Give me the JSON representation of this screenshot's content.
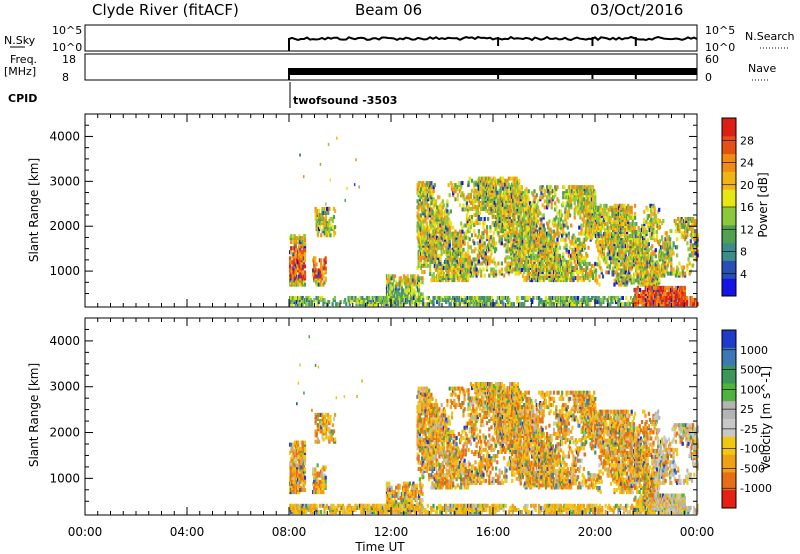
{
  "header": {
    "station": "Clyde River (fitACF)",
    "beam": "Beam 06",
    "date": "03/Oct/2016"
  },
  "top_panels": {
    "nsky_label": "N.Sky",
    "nsky_ticks": [
      "10^5",
      "10^0"
    ],
    "nsearch_label": "N.Search",
    "nsearch_ticks": [
      "10^5",
      "10^0"
    ],
    "freq_label": "Freq.",
    "freq_unit": "[MHz]",
    "freq_ticks": [
      "18",
      "8"
    ],
    "nave_label": "Nave",
    "nave_ticks": [
      "60",
      "0"
    ],
    "cpid_label": "CPID",
    "cpid_text": "twofsound -3503"
  },
  "chart_data": [
    {
      "type": "heatmap",
      "name": "power",
      "ylabel": "Slant Range [km]",
      "yticks": [
        1000,
        2000,
        3000,
        4000
      ],
      "ylim": [
        200,
        4500
      ],
      "xlabel": "Time UT",
      "xticks": [
        "00:00",
        "04:00",
        "08:00",
        "12:00",
        "16:00",
        "20:00",
        "00:00"
      ],
      "xlim_hours": [
        0,
        24
      ],
      "colorbar": {
        "label": "Power [dB]",
        "ticks": [
          "4",
          "8",
          "12",
          "16",
          "20",
          "24",
          "28"
        ],
        "colors": [
          "#1414e6",
          "#2850b4",
          "#3c8c8c",
          "#50a050",
          "#8cc83c",
          "#e6e614",
          "#f0b414",
          "#f08c14",
          "#e65014",
          "#dc1e14"
        ]
      },
      "data_start_hour": 8.0
    },
    {
      "type": "heatmap",
      "name": "velocity",
      "ylabel": "Slant Range [km]",
      "yticks": [
        1000,
        2000,
        3000,
        4000
      ],
      "ylim": [
        200,
        4500
      ],
      "xlabel": "Time UT",
      "xticks": [
        "00:00",
        "04:00",
        "08:00",
        "12:00",
        "16:00",
        "20:00",
        "00:00"
      ],
      "xlim_hours": [
        0,
        24
      ],
      "colorbar": {
        "label": "Velocity [m s^-1]",
        "ticks": [
          "1000",
          "500",
          "100",
          "25",
          "-25",
          "-100",
          "-500",
          "-1000"
        ],
        "colors": [
          "#1e3cc8",
          "#3c78b4",
          "#3c965a",
          "#50b43c",
          "#b4b4b4",
          "#c8c8c8",
          "#f0c814",
          "#f0a014",
          "#e66e14",
          "#e61e14"
        ]
      },
      "data_start_hour": 8.0
    }
  ]
}
